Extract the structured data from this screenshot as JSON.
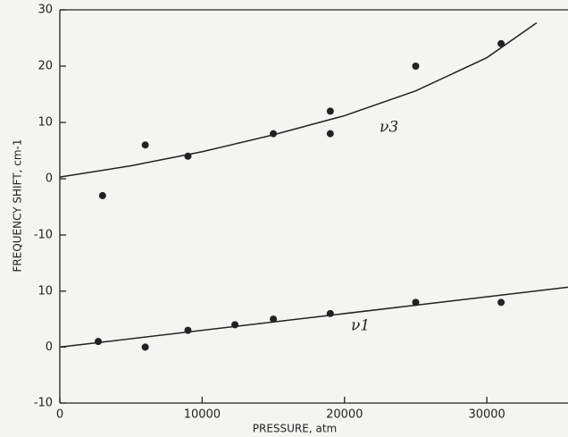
{
  "chart_data": [
    {
      "type": "scatter",
      "ylabel": "FREQUENCY SHIFT, cm-1",
      "annotation": "ν3",
      "ylim": [
        -15,
        30
      ],
      "yticks": [
        30,
        20,
        10,
        0,
        -10
      ],
      "series": [
        {
          "color": "#222222",
          "x": [
            3000,
            6000,
            9000,
            15000,
            19000,
            19000,
            25000,
            31000
          ],
          "values": [
            -3,
            6,
            4,
            8,
            8,
            12,
            20,
            24
          ]
        },
        {
          "color": "#222222",
          "line": true,
          "x": [
            0,
            5000,
            10000,
            15000,
            20000,
            25000,
            30000,
            33500
          ],
          "values": [
            0.3,
            2.3,
            4.8,
            7.8,
            11.2,
            15.6,
            21.5,
            27.7
          ]
        }
      ]
    },
    {
      "type": "scatter",
      "xlabel": "PRESSURE, atm",
      "annotation": "ν1",
      "xlim": [
        0,
        35700
      ],
      "xticks": [
        0,
        10000,
        20000,
        30000
      ],
      "ylim": [
        -10,
        15
      ],
      "yticks": [
        10,
        0,
        -10
      ],
      "series": [
        {
          "color": "#222222",
          "x": [
            2700,
            6000,
            9000,
            12300,
            15000,
            19000,
            25000,
            31000
          ],
          "values": [
            1,
            0,
            3,
            4,
            5,
            6,
            8,
            8
          ]
        },
        {
          "color": "#222222",
          "line": true,
          "x": [
            0,
            35700
          ],
          "values": [
            0,
            10.7
          ]
        }
      ]
    }
  ]
}
